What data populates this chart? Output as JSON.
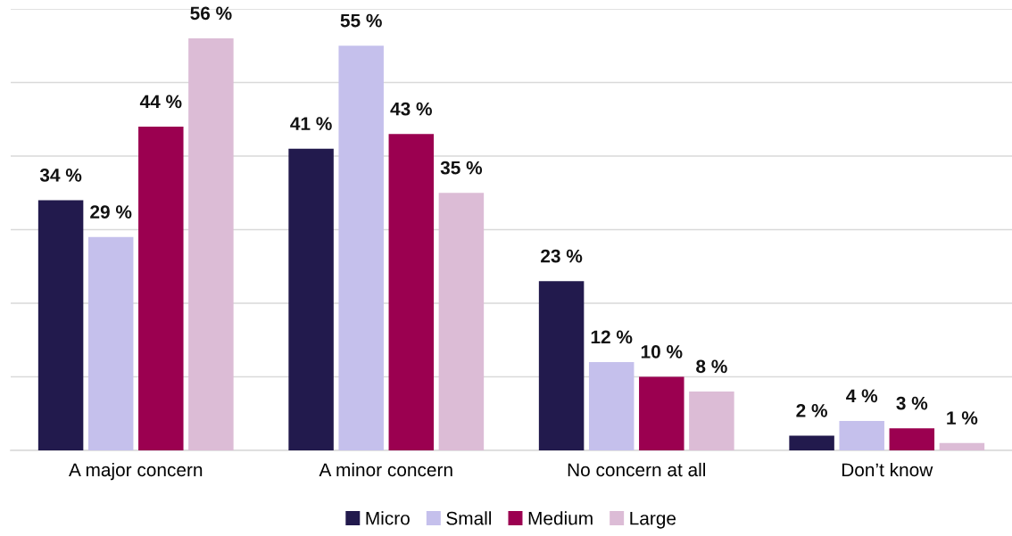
{
  "chart_data": {
    "type": "bar",
    "categories": [
      "A major concern",
      "A minor concern",
      "No concern at all",
      "Don’t know"
    ],
    "series": [
      {
        "name": "Micro",
        "color": "#221a4d",
        "values": [
          34,
          41,
          23,
          2
        ],
        "value_labels": [
          "34 %",
          "41 %",
          "23 %",
          "2 %"
        ]
      },
      {
        "name": "Small",
        "color": "#c5c0ec",
        "values": [
          29,
          55,
          12,
          4
        ],
        "value_labels": [
          "29 %",
          "55 %",
          "12 %",
          "4 %"
        ]
      },
      {
        "name": "Medium",
        "color": "#9b0050",
        "values": [
          44,
          43,
          10,
          3
        ],
        "value_labels": [
          "44 %",
          "43 %",
          "10 %",
          "3 %"
        ]
      },
      {
        "name": "Large",
        "color": "#dcbcd6",
        "values": [
          56,
          35,
          8,
          1
        ],
        "value_labels": [
          "56 %",
          "35 %",
          "8 %",
          "1 %"
        ]
      }
    ],
    "ylim": [
      0,
      60
    ],
    "yticks": [
      {
        "value": 0,
        "label": null
      },
      {
        "value": 10,
        "label": null
      },
      {
        "value": 20,
        "label": null
      },
      {
        "value": 30,
        "label": null
      },
      {
        "value": 40,
        "label": null
      },
      {
        "value": 50,
        "label": null
      },
      {
        "value": 60,
        "label": null
      }
    ],
    "grid": "y",
    "legend": "bottom",
    "tick_labels": "x"
  }
}
